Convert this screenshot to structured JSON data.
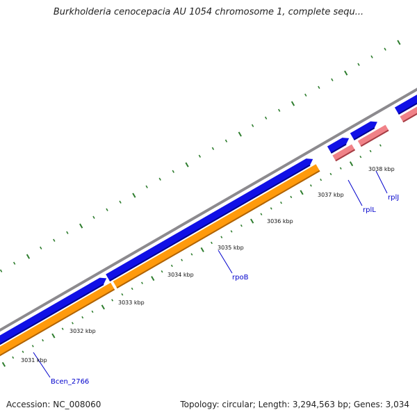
{
  "title": "Burkholderia cenocepacia AU 1054 chromosome 1, complete sequ...",
  "footer": {
    "accession": "Accession: NC_008060",
    "summary": "Topology: circular; Length: 3,294,563 bp; Genes: 3,034"
  },
  "colors": {
    "backbone": "#8c8a8e",
    "cds_forward": "#1010e6",
    "cds_forward_shadow": "#00008c",
    "orange_track": "#ff9a0c",
    "orange_shadow": "#b06200",
    "rna_track": "#f08288",
    "rna_shadow": "#a63c44",
    "tick": "#2e7d2e",
    "gene_label": "#0000cc",
    "leader": "#0000cc",
    "scale_label": "#111111"
  },
  "scale_labels": [
    "3031 kbp",
    "3032 kbp",
    "3033 kbp",
    "3034 kbp",
    "3035 kbp",
    "3036 kbp",
    "3037 kbp",
    "3038 kbp"
  ],
  "gene_labels": [
    "Bcen_2766",
    "rpoB",
    "rplL",
    "rplJ"
  ]
}
